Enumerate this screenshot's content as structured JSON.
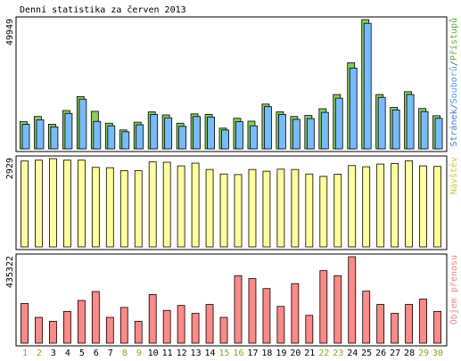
{
  "chart_data": {
    "title": "Denní statistika za červen 2013",
    "days": [
      "1",
      "2",
      "3",
      "4",
      "5",
      "6",
      "7",
      "8",
      "9",
      "10",
      "11",
      "12",
      "13",
      "14",
      "15",
      "16",
      "17",
      "18",
      "19",
      "20",
      "21",
      "22",
      "23",
      "24",
      "25",
      "26",
      "27",
      "28",
      "29",
      "30"
    ],
    "weekend_days": [
      "1",
      "2",
      "8",
      "9",
      "15",
      "16",
      "22",
      "23",
      "29",
      "30"
    ],
    "panels": [
      {
        "key": "hits",
        "type": "bar",
        "ylabel_max": "49949",
        "ymax": 49949,
        "legend": [
          {
            "label": "Stránek",
            "color": "#4477dd"
          },
          {
            "label": "/",
            "color": "#555555"
          },
          {
            "label": "Souborů",
            "color": "#5599ee"
          },
          {
            "label": "/",
            "color": "#555555"
          },
          {
            "label": "Přístupů",
            "color": "#66aa33"
          }
        ],
        "series": [
          {
            "name": "Přístupů",
            "color": "#88cc55",
            "values": [
              10500,
              12500,
              9500,
              14800,
              20200,
              14500,
              9900,
              7300,
              10300,
              14300,
              13100,
              9900,
              13500,
              13300,
              8000,
              11800,
              10700,
              17300,
              14300,
              12500,
              12900,
              15500,
              21000,
              33300,
              49949,
              21000,
              16000,
              22100,
              15600,
              12800
            ]
          },
          {
            "name": "Souborů",
            "color": "#77bbff",
            "values": [
              9500,
              11200,
              8500,
              13700,
              19200,
              10600,
              8900,
              6600,
              9300,
              13300,
              12000,
              8700,
              12500,
              12300,
              7300,
              10500,
              8900,
              16300,
              13300,
              11400,
              11700,
              14100,
              19600,
              31200,
              48500,
              19900,
              15000,
              21000,
              14400,
              11800
            ]
          }
        ]
      },
      {
        "key": "visits",
        "type": "bar",
        "ylabel_max": "2929",
        "ymax": 2929,
        "legend": [
          {
            "label": "Návštěv",
            "color": "#cccc44"
          }
        ],
        "series": [
          {
            "name": "Návštěv",
            "color": "#ffff99",
            "values": [
              2850,
              2880,
              2929,
              2880,
              2880,
              2640,
              2630,
              2530,
              2530,
              2820,
              2810,
              2690,
              2780,
              2570,
              2420,
              2400,
              2570,
              2510,
              2580,
              2570,
              2420,
              2340,
              2410,
              2700,
              2660,
              2750,
              2770,
              2860,
              2690,
              2670
            ]
          }
        ]
      },
      {
        "key": "traffic",
        "type": "bar",
        "ylabel_max": "435322",
        "ymax": 435322,
        "legend": [
          {
            "label": "Objem přenosu",
            "color": "#ee8888"
          }
        ],
        "series": [
          {
            "name": "Objem přenosu",
            "color": "#ff8888",
            "values": [
              200000,
              130000,
              110000,
              160000,
              215000,
              260000,
              130000,
              180000,
              110000,
              245000,
              165000,
              190000,
              150000,
              195000,
              130000,
              340000,
              325000,
              275000,
              185000,
              300000,
              140000,
              365000,
              340000,
              435322,
              262000,
              195000,
              150000,
              195000,
              222000,
              160000
            ]
          }
        ]
      }
    ]
  }
}
